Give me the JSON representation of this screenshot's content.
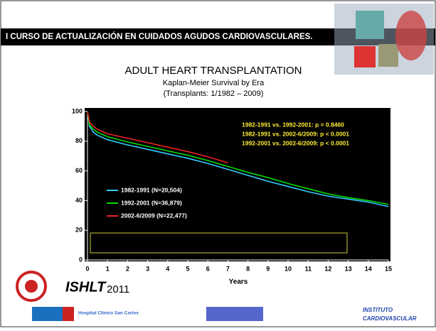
{
  "slide": {
    "banner": "I CURSO DE ACTUALIZACIÓN EN CUIDADOS AGUDOS CARDIOVASCULARES.",
    "brand": "ISHLT",
    "year": "2011",
    "hospital": "Hospital Clínico San Carlos",
    "institute_1": "INSTITUTO",
    "institute_2": "CARDIOVASCULAR"
  },
  "chart_data": {
    "type": "line",
    "title": "ADULT HEART TRANSPLANTATION",
    "subtitle": "Kaplan-Meier Survival by Era",
    "subtitle2": "(Transplants: 1/1982 – 2009)",
    "x_label": "Years",
    "x": [
      0,
      0.1,
      0.3,
      0.5,
      1,
      2,
      3,
      4,
      5,
      6,
      7,
      8,
      9,
      10,
      11,
      12,
      13,
      14,
      15
    ],
    "series": [
      {
        "name": "1982-1991 (N=20,504)",
        "color": "#33ccff",
        "values": [
          100,
          90,
          86,
          84,
          81,
          77.5,
          74.5,
          71.5,
          68.5,
          65,
          61,
          57,
          53,
          49.5,
          46,
          43,
          41,
          39,
          36
        ]
      },
      {
        "name": "1992-2001 (N=36,879)",
        "color": "#00dd00",
        "values": [
          100,
          91,
          88,
          86,
          83,
          79.5,
          76.5,
          73.5,
          70.5,
          67,
          63,
          59,
          55.5,
          51.5,
          48,
          44.5,
          42,
          40,
          37.5
        ]
      },
      {
        "name": "2002-6/2009 (N=22,477)",
        "color": "#ee2222",
        "values": [
          100,
          93,
          90,
          88,
          85,
          82,
          79,
          76,
          73,
          69.5,
          65.5,
          null,
          null,
          null,
          null,
          null,
          null,
          null,
          null
        ]
      }
    ],
    "annotations": [
      "1982-1991 vs. 1992-2001: p = 0.8460",
      "1982-1991 vs. 2002-6/2009: p < 0.0001",
      "1992-2001 vs. 2002-6/2009: p <  0.0001"
    ],
    "xlim": [
      0,
      15
    ],
    "xticks": [
      0,
      1,
      2,
      3,
      4,
      5,
      6,
      7,
      8,
      9,
      10,
      11,
      12,
      13,
      14,
      15
    ],
    "ylim": [
      0,
      100
    ],
    "yticks": [
      0,
      20,
      40,
      60,
      80,
      100
    ],
    "grid": false
  }
}
